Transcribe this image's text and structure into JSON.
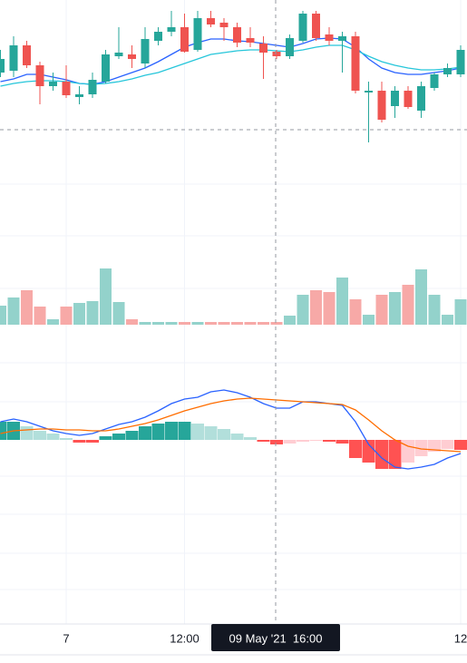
{
  "chart_data": [
    {
      "type": "candlestick",
      "categories": [
        null,
        null,
        null,
        null,
        null,
        "7",
        null,
        null,
        null,
        null,
        null,
        null,
        null,
        null,
        "12:00",
        null,
        null,
        null,
        null,
        null,
        null,
        null,
        null,
        null,
        null,
        null,
        null,
        null,
        null,
        null,
        null,
        null,
        null,
        null,
        null,
        "12"
      ],
      "crosshair_label": "09 May '21  16:00",
      "open": [
        120,
        122,
        150,
        128,
        105,
        110,
        93,
        96,
        110,
        138,
        140,
        130,
        155,
        165,
        170,
        145,
        180,
        175,
        170,
        158,
        152,
        143,
        138,
        155,
        185,
        162,
        155,
        160,
        98,
        100,
        83,
        100,
        78,
        103,
        118,
        118
      ],
      "high": [
        145,
        160,
        155,
        132,
        120,
        128,
        105,
        120,
        145,
        170,
        150,
        170,
        170,
        188,
        185,
        188,
        188,
        180,
        175,
        170,
        160,
        145,
        162,
        188,
        188,
        170,
        165,
        165,
        110,
        110,
        105,
        105,
        110,
        120,
        130,
        150
      ],
      "low": [
        115,
        115,
        125,
        85,
        100,
        92,
        85,
        92,
        108,
        135,
        125,
        125,
        150,
        160,
        142,
        143,
        170,
        155,
        148,
        148,
        113,
        135,
        135,
        153,
        155,
        150,
        120,
        97,
        43,
        65,
        70,
        80,
        70,
        100,
        115,
        115
      ],
      "close": [
        135,
        150,
        128,
        105,
        110,
        95,
        96,
        112,
        140,
        142,
        135,
        157,
        165,
        170,
        143,
        180,
        173,
        170,
        153,
        153,
        142,
        138,
        158,
        185,
        158,
        155,
        160,
        100,
        100,
        68,
        100,
        82,
        105,
        118,
        125,
        145
      ],
      "up_color": "#26a69a",
      "down_color": "#ef5350",
      "ylim": [
        10,
        200
      ],
      "series": [
        {
          "color": "#2962ff",
          "values": [
            110,
            113,
            118,
            118,
            115,
            112,
            108,
            107,
            110,
            115,
            120,
            125,
            132,
            140,
            148,
            153,
            157,
            157,
            155,
            154,
            152,
            150,
            148,
            152,
            157,
            158,
            157,
            148,
            135,
            125,
            120,
            118,
            118,
            120,
            122,
            125
          ]
        },
        {
          "color": "#26c6da",
          "values": [
            105,
            108,
            110,
            111,
            111,
            110,
            108,
            107,
            108,
            110,
            113,
            117,
            120,
            125,
            130,
            135,
            140,
            142,
            144,
            145,
            145,
            144,
            143,
            145,
            148,
            150,
            150,
            145,
            138,
            132,
            128,
            125,
            123,
            123,
            124,
            126
          ]
        }
      ]
    },
    {
      "type": "bar",
      "values": [
        21,
        30,
        38,
        20,
        6,
        20,
        24,
        26,
        62,
        25,
        6,
        3,
        3,
        3,
        3,
        3,
        3,
        3,
        3,
        3,
        3,
        3,
        10,
        33,
        38,
        36,
        52,
        28,
        11,
        33,
        36,
        44,
        61,
        33,
        11,
        28
      ],
      "up_color": "#93d2cb",
      "down_color": "#f7a9a7",
      "ylim": [
        0,
        168
      ]
    },
    {
      "type": "macd",
      "histogram": [
        20,
        20,
        15,
        10,
        7,
        2,
        -3,
        -3,
        4,
        7,
        10,
        15,
        18,
        20,
        20,
        18,
        15,
        12,
        7,
        3,
        -2,
        -5,
        -4,
        -2,
        -1,
        -2,
        -4,
        -20,
        -25,
        -32,
        -32,
        -25,
        -18,
        -13,
        -10,
        -11
      ],
      "colors": {
        "pos_rising": "#26a69a",
        "pos_falling": "#b2dfdb",
        "neg_falling": "#ff5252",
        "neg_rising": "#ffcdd2"
      },
      "ylim": [
        -203,
        125
      ],
      "series": [
        {
          "color": "#2962ff",
          "values": [
            20,
            23,
            20,
            15,
            10,
            7,
            5,
            7,
            12,
            17,
            20,
            25,
            32,
            40,
            45,
            47,
            53,
            55,
            52,
            47,
            40,
            35,
            35,
            42,
            42,
            40,
            38,
            20,
            -5,
            -20,
            -30,
            -32,
            -30,
            -27,
            -20,
            -15
          ]
        },
        {
          "color": "#ff6d00",
          "values": [
            7,
            10,
            11,
            12,
            12,
            11,
            11,
            10,
            10,
            12,
            15,
            18,
            22,
            27,
            32,
            36,
            40,
            43,
            45,
            46,
            45,
            44,
            43,
            42,
            41,
            40,
            39,
            33,
            22,
            10,
            0,
            -7,
            -10,
            -11,
            -12,
            -13
          ]
        }
      ]
    }
  ]
}
